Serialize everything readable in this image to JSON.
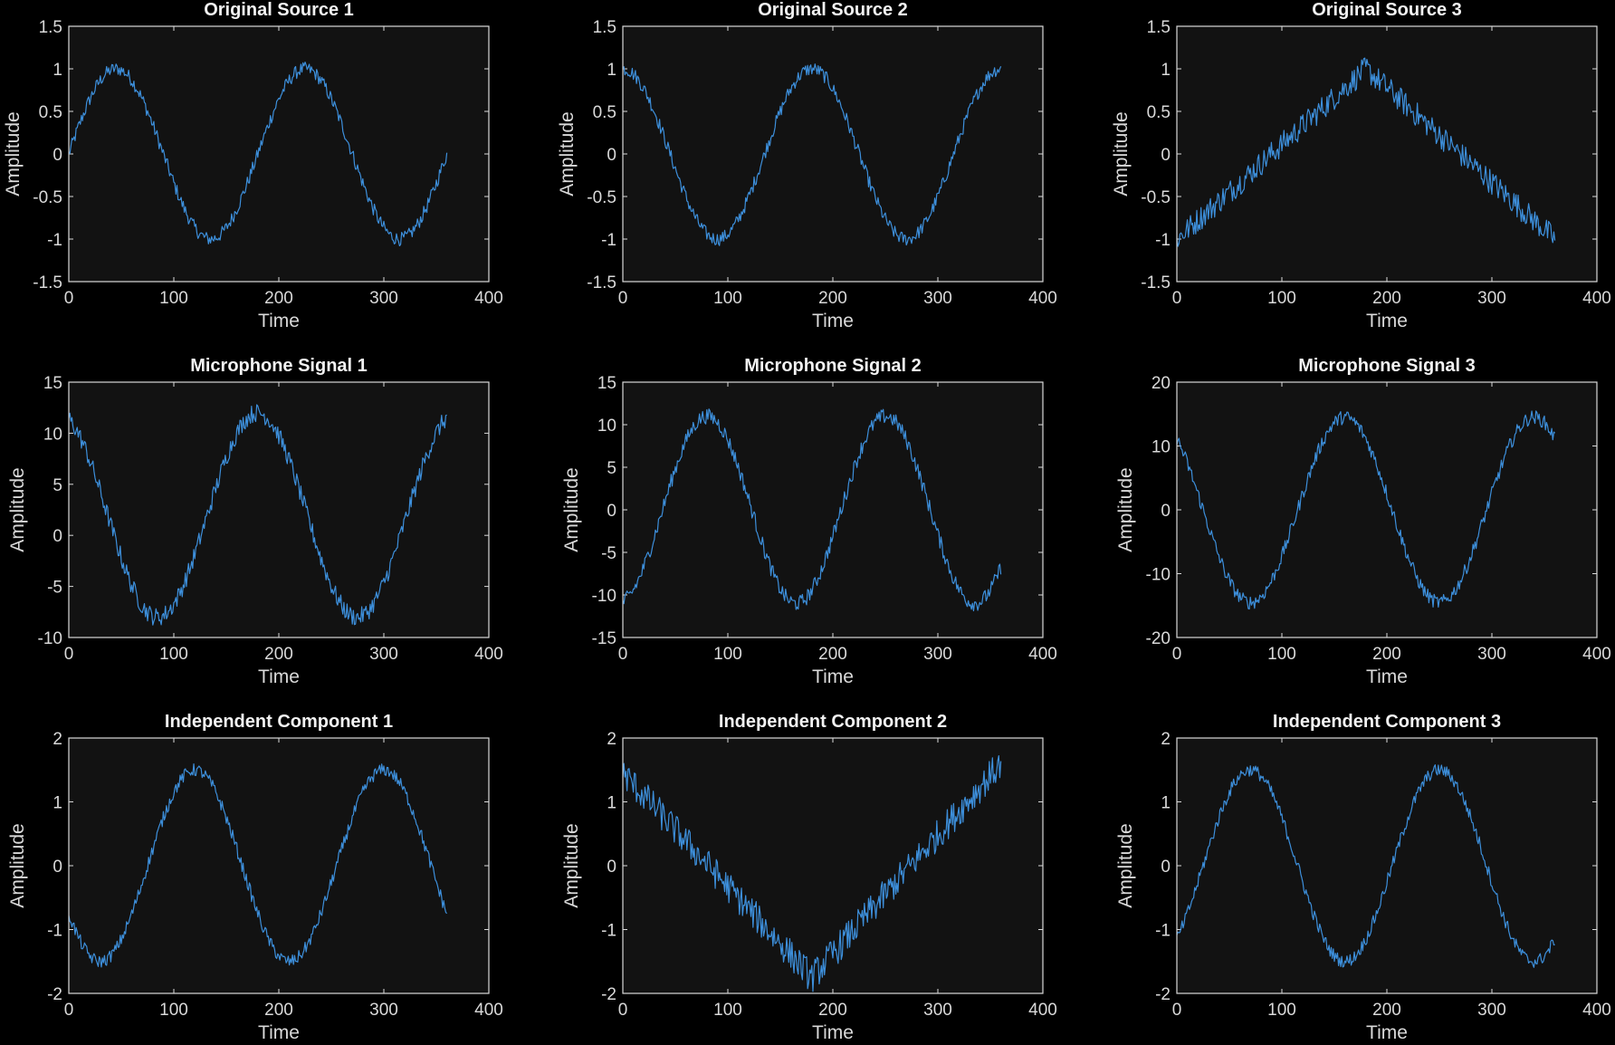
{
  "figure": {
    "background": "#000000",
    "axes_background": "#121212",
    "axes_color": "#d9d9d9",
    "line_color": "#3d8fdb"
  },
  "chart_data": [
    {
      "type": "line",
      "title": "Original Source 1",
      "xlabel": "Time",
      "ylabel": "Amplitude",
      "xlim": [
        0,
        400
      ],
      "ylim": [
        -1.5,
        1.5
      ],
      "xticks": [
        0,
        100,
        200,
        300,
        400
      ],
      "yticks": [
        -1.5,
        -1,
        -0.5,
        0,
        0.5,
        1,
        1.5
      ],
      "series": [
        {
          "shape": "sine",
          "x_start": 0,
          "x_end": 360,
          "amplitude": 1,
          "period": 180,
          "phase_deg": 0,
          "noise": 0.08,
          "values": []
        }
      ]
    },
    {
      "type": "line",
      "title": "Original Source 2",
      "xlabel": "Time",
      "ylabel": "Amplitude",
      "xlim": [
        0,
        400
      ],
      "ylim": [
        -1.5,
        1.5
      ],
      "xticks": [
        0,
        100,
        200,
        300,
        400
      ],
      "yticks": [
        -1.5,
        -1,
        -0.5,
        0,
        0.5,
        1,
        1.5
      ],
      "series": [
        {
          "shape": "sine",
          "x_start": 0,
          "x_end": 360,
          "amplitude": 1,
          "period": 180,
          "phase_deg": 90,
          "noise": 0.08,
          "values": []
        }
      ]
    },
    {
      "type": "line",
      "title": "Original Source 3",
      "xlabel": "Time",
      "ylabel": "Amplitude",
      "xlim": [
        0,
        400
      ],
      "ylim": [
        -1.5,
        1.5
      ],
      "xticks": [
        0,
        100,
        200,
        300,
        400
      ],
      "yticks": [
        -1.5,
        -1,
        -0.5,
        0,
        0.5,
        1,
        1.5
      ],
      "series": [
        {
          "shape": "triangle",
          "x_start": 0,
          "x_end": 360,
          "points": [
            [
              0,
              -1
            ],
            [
              180,
              1
            ],
            [
              360,
              -1
            ]
          ],
          "noise": 0.15,
          "values": []
        }
      ]
    },
    {
      "type": "line",
      "title": "Microphone Signal 1",
      "xlabel": "Time",
      "ylabel": "Amplitude",
      "xlim": [
        0,
        400
      ],
      "ylim": [
        -10,
        15
      ],
      "xticks": [
        0,
        100,
        200,
        300,
        400
      ],
      "yticks": [
        -10,
        -5,
        0,
        5,
        10,
        15
      ],
      "series": [
        {
          "shape": "sine",
          "x_start": 0,
          "x_end": 360,
          "amplitude": 10,
          "period": 190,
          "phase_deg": 110,
          "offset": 2,
          "noise": 0.9,
          "values": []
        }
      ]
    },
    {
      "type": "line",
      "title": "Microphone Signal 2",
      "xlabel": "Time",
      "ylabel": "Amplitude",
      "xlim": [
        0,
        400
      ],
      "ylim": [
        -15,
        15
      ],
      "xticks": [
        0,
        100,
        200,
        300,
        400
      ],
      "yticks": [
        -15,
        -10,
        -5,
        0,
        5,
        10,
        15
      ],
      "series": [
        {
          "shape": "sine",
          "x_start": 0,
          "x_end": 360,
          "amplitude": 11,
          "period": 170,
          "phase_deg": -80,
          "offset": 0,
          "noise": 0.9,
          "values": []
        }
      ]
    },
    {
      "type": "line",
      "title": "Microphone Signal 3",
      "xlabel": "Time",
      "ylabel": "Amplitude",
      "xlim": [
        0,
        400
      ],
      "ylim": [
        -20,
        20
      ],
      "xticks": [
        0,
        100,
        200,
        300,
        400
      ],
      "yticks": [
        -20,
        -10,
        0,
        10,
        20
      ],
      "series": [
        {
          "shape": "sine",
          "x_start": 0,
          "x_end": 360,
          "amplitude": 14.5,
          "period": 180,
          "phase_deg": 130,
          "offset": 0,
          "noise": 1.1,
          "values": []
        }
      ]
    },
    {
      "type": "line",
      "title": "Independent Component 1",
      "xlabel": "Time",
      "ylabel": "Amplitude",
      "xlim": [
        0,
        400
      ],
      "ylim": [
        -2,
        2
      ],
      "xticks": [
        0,
        100,
        200,
        300,
        400
      ],
      "yticks": [
        -2,
        -1,
        0,
        1,
        2
      ],
      "series": [
        {
          "shape": "sine",
          "x_start": 0,
          "x_end": 360,
          "amplitude": 1.5,
          "period": 180,
          "phase_deg": 210,
          "offset": 0,
          "noise": 0.1,
          "values": []
        }
      ]
    },
    {
      "type": "line",
      "title": "Independent Component 2",
      "xlabel": "Time",
      "ylabel": "Amplitude",
      "xlim": [
        0,
        400
      ],
      "ylim": [
        -2,
        2
      ],
      "xticks": [
        0,
        100,
        200,
        300,
        400
      ],
      "yticks": [
        -2,
        -1,
        0,
        1,
        2
      ],
      "series": [
        {
          "shape": "triangle",
          "x_start": 0,
          "x_end": 360,
          "points": [
            [
              0,
              1.45
            ],
            [
              180,
              -1.75
            ],
            [
              360,
              1.6
            ]
          ],
          "noise": 0.25,
          "values": []
        }
      ]
    },
    {
      "type": "line",
      "title": "Independent Component 3",
      "xlabel": "Time",
      "ylabel": "Amplitude",
      "xlim": [
        0,
        400
      ],
      "ylim": [
        -2,
        2
      ],
      "xticks": [
        0,
        100,
        200,
        300,
        400
      ],
      "yticks": [
        -2,
        -1,
        0,
        1,
        2
      ],
      "series": [
        {
          "shape": "sine",
          "x_start": 0,
          "x_end": 360,
          "amplitude": 1.5,
          "period": 180,
          "phase_deg": -50,
          "offset": 0,
          "noise": 0.1,
          "values": []
        }
      ]
    }
  ]
}
